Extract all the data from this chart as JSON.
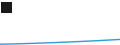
{
  "x": [
    0,
    1,
    2,
    3,
    4,
    5,
    6,
    7,
    8,
    9,
    10,
    11,
    12,
    13,
    14,
    15,
    16,
    17,
    18,
    19,
    20
  ],
  "y": [
    10,
    10.3,
    10.6,
    11.0,
    11.4,
    11.9,
    12.4,
    12.9,
    13.4,
    14.0,
    14.6,
    15.2,
    15.8,
    16.5,
    17.2,
    17.9,
    18.6,
    19.4,
    20.2,
    21.0,
    21.8
  ],
  "line_color": "#2e9dd4",
  "line_width": 1.0,
  "background_color": "#ffffff",
  "legend_box_color": "#1a1a1a",
  "ylim": [
    8,
    120
  ],
  "xlim": [
    0,
    20
  ]
}
